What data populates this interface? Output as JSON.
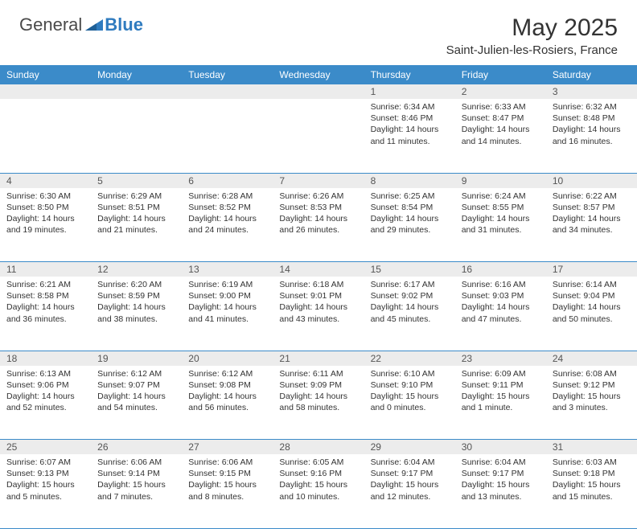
{
  "logo": {
    "general": "General",
    "blue": "Blue"
  },
  "title": "May 2025",
  "location": "Saint-Julien-les-Rosiers, France",
  "colors": {
    "header_bg": "#3b8bc9",
    "header_text": "#ffffff",
    "daynum_bg": "#ececec",
    "daynum_text": "#555555",
    "body_text": "#333333",
    "rule": "#3b8bc9",
    "logo_gray": "#4a4a4a",
    "logo_blue": "#2f7bbf"
  },
  "typography": {
    "title_fontsize": 30,
    "location_fontsize": 15,
    "weekday_fontsize": 12,
    "daynum_fontsize": 12,
    "cell_fontsize": 10.5
  },
  "weekdays": [
    "Sunday",
    "Monday",
    "Tuesday",
    "Wednesday",
    "Thursday",
    "Friday",
    "Saturday"
  ],
  "weeks": [
    [
      null,
      null,
      null,
      null,
      {
        "n": "1",
        "sr": "Sunrise: 6:34 AM",
        "ss": "Sunset: 8:46 PM",
        "d1": "Daylight: 14 hours",
        "d2": "and 11 minutes."
      },
      {
        "n": "2",
        "sr": "Sunrise: 6:33 AM",
        "ss": "Sunset: 8:47 PM",
        "d1": "Daylight: 14 hours",
        "d2": "and 14 minutes."
      },
      {
        "n": "3",
        "sr": "Sunrise: 6:32 AM",
        "ss": "Sunset: 8:48 PM",
        "d1": "Daylight: 14 hours",
        "d2": "and 16 minutes."
      }
    ],
    [
      {
        "n": "4",
        "sr": "Sunrise: 6:30 AM",
        "ss": "Sunset: 8:50 PM",
        "d1": "Daylight: 14 hours",
        "d2": "and 19 minutes."
      },
      {
        "n": "5",
        "sr": "Sunrise: 6:29 AM",
        "ss": "Sunset: 8:51 PM",
        "d1": "Daylight: 14 hours",
        "d2": "and 21 minutes."
      },
      {
        "n": "6",
        "sr": "Sunrise: 6:28 AM",
        "ss": "Sunset: 8:52 PM",
        "d1": "Daylight: 14 hours",
        "d2": "and 24 minutes."
      },
      {
        "n": "7",
        "sr": "Sunrise: 6:26 AM",
        "ss": "Sunset: 8:53 PM",
        "d1": "Daylight: 14 hours",
        "d2": "and 26 minutes."
      },
      {
        "n": "8",
        "sr": "Sunrise: 6:25 AM",
        "ss": "Sunset: 8:54 PM",
        "d1": "Daylight: 14 hours",
        "d2": "and 29 minutes."
      },
      {
        "n": "9",
        "sr": "Sunrise: 6:24 AM",
        "ss": "Sunset: 8:55 PM",
        "d1": "Daylight: 14 hours",
        "d2": "and 31 minutes."
      },
      {
        "n": "10",
        "sr": "Sunrise: 6:22 AM",
        "ss": "Sunset: 8:57 PM",
        "d1": "Daylight: 14 hours",
        "d2": "and 34 minutes."
      }
    ],
    [
      {
        "n": "11",
        "sr": "Sunrise: 6:21 AM",
        "ss": "Sunset: 8:58 PM",
        "d1": "Daylight: 14 hours",
        "d2": "and 36 minutes."
      },
      {
        "n": "12",
        "sr": "Sunrise: 6:20 AM",
        "ss": "Sunset: 8:59 PM",
        "d1": "Daylight: 14 hours",
        "d2": "and 38 minutes."
      },
      {
        "n": "13",
        "sr": "Sunrise: 6:19 AM",
        "ss": "Sunset: 9:00 PM",
        "d1": "Daylight: 14 hours",
        "d2": "and 41 minutes."
      },
      {
        "n": "14",
        "sr": "Sunrise: 6:18 AM",
        "ss": "Sunset: 9:01 PM",
        "d1": "Daylight: 14 hours",
        "d2": "and 43 minutes."
      },
      {
        "n": "15",
        "sr": "Sunrise: 6:17 AM",
        "ss": "Sunset: 9:02 PM",
        "d1": "Daylight: 14 hours",
        "d2": "and 45 minutes."
      },
      {
        "n": "16",
        "sr": "Sunrise: 6:16 AM",
        "ss": "Sunset: 9:03 PM",
        "d1": "Daylight: 14 hours",
        "d2": "and 47 minutes."
      },
      {
        "n": "17",
        "sr": "Sunrise: 6:14 AM",
        "ss": "Sunset: 9:04 PM",
        "d1": "Daylight: 14 hours",
        "d2": "and 50 minutes."
      }
    ],
    [
      {
        "n": "18",
        "sr": "Sunrise: 6:13 AM",
        "ss": "Sunset: 9:06 PM",
        "d1": "Daylight: 14 hours",
        "d2": "and 52 minutes."
      },
      {
        "n": "19",
        "sr": "Sunrise: 6:12 AM",
        "ss": "Sunset: 9:07 PM",
        "d1": "Daylight: 14 hours",
        "d2": "and 54 minutes."
      },
      {
        "n": "20",
        "sr": "Sunrise: 6:12 AM",
        "ss": "Sunset: 9:08 PM",
        "d1": "Daylight: 14 hours",
        "d2": "and 56 minutes."
      },
      {
        "n": "21",
        "sr": "Sunrise: 6:11 AM",
        "ss": "Sunset: 9:09 PM",
        "d1": "Daylight: 14 hours",
        "d2": "and 58 minutes."
      },
      {
        "n": "22",
        "sr": "Sunrise: 6:10 AM",
        "ss": "Sunset: 9:10 PM",
        "d1": "Daylight: 15 hours",
        "d2": "and 0 minutes."
      },
      {
        "n": "23",
        "sr": "Sunrise: 6:09 AM",
        "ss": "Sunset: 9:11 PM",
        "d1": "Daylight: 15 hours",
        "d2": "and 1 minute."
      },
      {
        "n": "24",
        "sr": "Sunrise: 6:08 AM",
        "ss": "Sunset: 9:12 PM",
        "d1": "Daylight: 15 hours",
        "d2": "and 3 minutes."
      }
    ],
    [
      {
        "n": "25",
        "sr": "Sunrise: 6:07 AM",
        "ss": "Sunset: 9:13 PM",
        "d1": "Daylight: 15 hours",
        "d2": "and 5 minutes."
      },
      {
        "n": "26",
        "sr": "Sunrise: 6:06 AM",
        "ss": "Sunset: 9:14 PM",
        "d1": "Daylight: 15 hours",
        "d2": "and 7 minutes."
      },
      {
        "n": "27",
        "sr": "Sunrise: 6:06 AM",
        "ss": "Sunset: 9:15 PM",
        "d1": "Daylight: 15 hours",
        "d2": "and 8 minutes."
      },
      {
        "n": "28",
        "sr": "Sunrise: 6:05 AM",
        "ss": "Sunset: 9:16 PM",
        "d1": "Daylight: 15 hours",
        "d2": "and 10 minutes."
      },
      {
        "n": "29",
        "sr": "Sunrise: 6:04 AM",
        "ss": "Sunset: 9:17 PM",
        "d1": "Daylight: 15 hours",
        "d2": "and 12 minutes."
      },
      {
        "n": "30",
        "sr": "Sunrise: 6:04 AM",
        "ss": "Sunset: 9:17 PM",
        "d1": "Daylight: 15 hours",
        "d2": "and 13 minutes."
      },
      {
        "n": "31",
        "sr": "Sunrise: 6:03 AM",
        "ss": "Sunset: 9:18 PM",
        "d1": "Daylight: 15 hours",
        "d2": "and 15 minutes."
      }
    ]
  ]
}
